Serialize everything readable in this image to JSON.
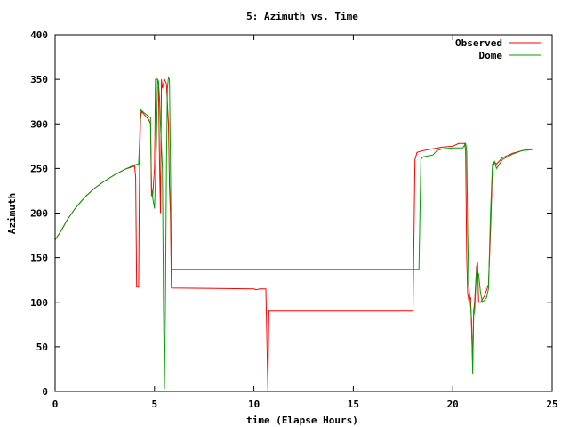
{
  "chart_data": {
    "type": "line",
    "title": "5: Azimuth vs. Time",
    "xlabel": "time (Elapse Hours)",
    "ylabel": "Azimuth",
    "xlim": [
      0,
      25
    ],
    "ylim": [
      0,
      400
    ],
    "xticks": [
      "0",
      "5",
      "10",
      "15",
      "20",
      "25"
    ],
    "yticks": [
      "0",
      "50",
      "100",
      "150",
      "200",
      "250",
      "300",
      "350",
      "400"
    ],
    "grid": false,
    "legend_position": "top-right",
    "series": [
      {
        "name": "Observed",
        "color": "#ff0000",
        "points": [
          [
            0.0,
            170
          ],
          [
            0.3,
            180
          ],
          [
            0.6,
            192
          ],
          [
            1.0,
            205
          ],
          [
            1.5,
            218
          ],
          [
            2.0,
            228
          ],
          [
            2.5,
            236
          ],
          [
            3.0,
            243
          ],
          [
            3.5,
            249
          ],
          [
            3.9,
            252
          ],
          [
            4.0,
            253
          ],
          [
            4.05,
            240
          ],
          [
            4.1,
            117
          ],
          [
            4.2,
            117
          ],
          [
            4.25,
            255
          ],
          [
            4.3,
            305
          ],
          [
            4.35,
            314
          ],
          [
            4.5,
            310
          ],
          [
            4.7,
            305
          ],
          [
            4.8,
            300
          ],
          [
            4.85,
            220
          ],
          [
            4.9,
            218
          ],
          [
            5.0,
            250
          ],
          [
            5.05,
            350
          ],
          [
            5.1,
            350
          ],
          [
            5.15,
            350
          ],
          [
            5.2,
            345
          ],
          [
            5.25,
            260
          ],
          [
            5.3,
            200
          ],
          [
            5.35,
            350
          ],
          [
            5.4,
            340
          ],
          [
            5.5,
            350
          ],
          [
            5.6,
            345
          ],
          [
            5.7,
            300
          ],
          [
            5.75,
            230
          ],
          [
            5.8,
            200
          ],
          [
            5.85,
            116
          ],
          [
            10.0,
            115
          ],
          [
            10.1,
            114
          ],
          [
            10.3,
            115
          ],
          [
            10.6,
            115
          ],
          [
            10.65,
            60
          ],
          [
            10.7,
            0
          ],
          [
            10.75,
            90
          ],
          [
            18.0,
            90
          ],
          [
            18.1,
            260
          ],
          [
            18.2,
            268
          ],
          [
            18.5,
            270
          ],
          [
            19.0,
            272
          ],
          [
            19.5,
            274
          ],
          [
            20.0,
            275
          ],
          [
            20.3,
            278
          ],
          [
            20.6,
            278
          ],
          [
            20.65,
            270
          ],
          [
            20.7,
            150
          ],
          [
            20.75,
            110
          ],
          [
            20.8,
            103
          ],
          [
            20.9,
            105
          ],
          [
            21.0,
            30
          ],
          [
            21.05,
            90
          ],
          [
            21.1,
            100
          ],
          [
            21.2,
            140
          ],
          [
            21.25,
            145
          ],
          [
            21.3,
            100
          ],
          [
            21.4,
            100
          ],
          [
            21.6,
            107
          ],
          [
            21.8,
            120
          ],
          [
            21.9,
            180
          ],
          [
            22.0,
            250
          ],
          [
            22.1,
            257
          ],
          [
            22.2,
            255
          ],
          [
            22.5,
            262
          ],
          [
            23.0,
            267
          ],
          [
            23.5,
            270
          ],
          [
            24.0,
            272
          ]
        ]
      },
      {
        "name": "Dome",
        "color": "#00a000",
        "points": [
          [
            0.0,
            170
          ],
          [
            0.3,
            180
          ],
          [
            0.6,
            192
          ],
          [
            1.0,
            205
          ],
          [
            1.5,
            218
          ],
          [
            2.0,
            228
          ],
          [
            2.5,
            236
          ],
          [
            3.0,
            243
          ],
          [
            3.5,
            249
          ],
          [
            4.0,
            254
          ],
          [
            4.2,
            255
          ],
          [
            4.25,
            280
          ],
          [
            4.3,
            316
          ],
          [
            4.5,
            312
          ],
          [
            4.8,
            307
          ],
          [
            4.85,
            230
          ],
          [
            4.9,
            218
          ],
          [
            5.0,
            205
          ],
          [
            5.05,
            240
          ],
          [
            5.1,
            280
          ],
          [
            5.15,
            350
          ],
          [
            5.2,
            348
          ],
          [
            5.25,
            330
          ],
          [
            5.3,
            300
          ],
          [
            5.35,
            275
          ],
          [
            5.4,
            250
          ],
          [
            5.45,
            100
          ],
          [
            5.5,
            3
          ],
          [
            5.55,
            100
          ],
          [
            5.6,
            250
          ],
          [
            5.65,
            340
          ],
          [
            5.7,
            352
          ],
          [
            5.75,
            350
          ],
          [
            5.8,
            260
          ],
          [
            5.85,
            137
          ],
          [
            18.3,
            137
          ],
          [
            18.4,
            260
          ],
          [
            18.5,
            263
          ],
          [
            19.0,
            265
          ],
          [
            19.2,
            270
          ],
          [
            19.5,
            272
          ],
          [
            20.0,
            273
          ],
          [
            20.5,
            273
          ],
          [
            20.65,
            278
          ],
          [
            20.7,
            270
          ],
          [
            20.75,
            180
          ],
          [
            20.8,
            120
          ],
          [
            20.85,
            108
          ],
          [
            20.9,
            95
          ],
          [
            20.95,
            80
          ],
          [
            21.0,
            20
          ],
          [
            21.05,
            85
          ],
          [
            21.1,
            90
          ],
          [
            21.2,
            135
          ],
          [
            21.3,
            132
          ],
          [
            21.4,
            110
          ],
          [
            21.5,
            100
          ],
          [
            21.7,
            105
          ],
          [
            21.8,
            115
          ],
          [
            21.9,
            200
          ],
          [
            22.0,
            255
          ],
          [
            22.1,
            258
          ],
          [
            22.2,
            250
          ],
          [
            22.5,
            260
          ],
          [
            23.0,
            266
          ],
          [
            23.5,
            270
          ],
          [
            24.0,
            271
          ]
        ]
      }
    ]
  }
}
